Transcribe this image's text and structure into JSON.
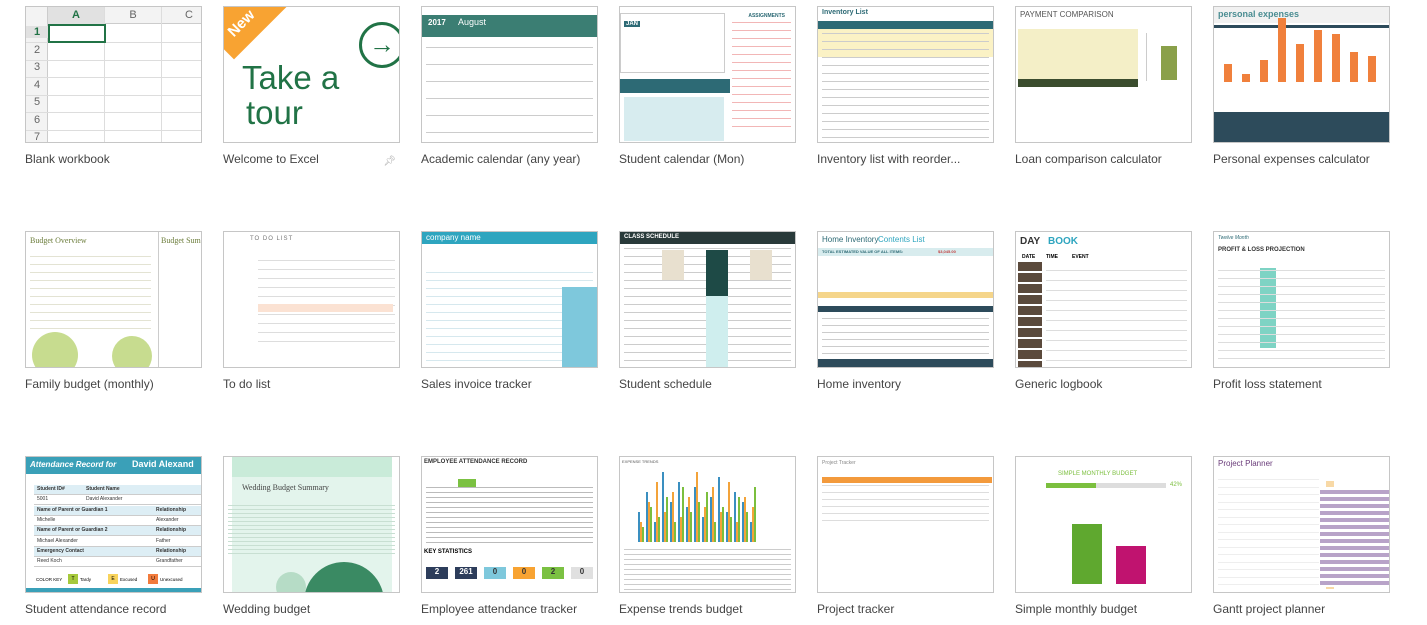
{
  "templates": [
    {
      "label": "Blank workbook",
      "cols": [
        "A",
        "B",
        "C"
      ],
      "rows": [
        "1",
        "2",
        "3",
        "4",
        "5",
        "6",
        "7"
      ]
    },
    {
      "label": "Welcome to Excel",
      "badge": "New",
      "title_line1": "Take a",
      "title_line2": "tour"
    },
    {
      "label": "Academic calendar (any year)",
      "year": "2017",
      "month": "August"
    },
    {
      "label": "Student calendar (Mon)",
      "heading": "ASSIGNMENTS",
      "month": "JAN"
    },
    {
      "label": "Inventory list with reorder...",
      "heading": "Inventory List"
    },
    {
      "label": "Loan comparison calculator",
      "heading": "PAYMENT COMPARISON"
    },
    {
      "label": "Personal expenses calculator",
      "heading": "personal expenses"
    },
    {
      "label": "Family budget (monthly)",
      "heading": "Budget Overview",
      "heading2": "Budget Sum"
    },
    {
      "label": "To do list",
      "heading": "TO DO LIST"
    },
    {
      "label": "Sales invoice tracker",
      "heading": "company name"
    },
    {
      "label": "Student schedule",
      "heading": "CLASS SCHEDULE"
    },
    {
      "label": "Home inventory",
      "heading": "Home Inventory",
      "heading2": "Contents List",
      "total": "TOTAL ESTIMATED VALUE OF ALL ITEMS:",
      "total_value": "$3,045.00"
    },
    {
      "label": "Generic logbook",
      "heading1": "DAY",
      "heading2": "BOOK",
      "cols": [
        "DATE",
        "TIME",
        "EVENT"
      ]
    },
    {
      "label": "Profit loss statement",
      "subtitle": "Twelve Month",
      "heading": "PROFIT & LOSS PROJECTION"
    },
    {
      "label": "Student attendance record",
      "heading": "Attendance Record for",
      "name": "David Alexand",
      "rows": [
        [
          "Student ID#",
          "Student Name"
        ],
        [
          "5001",
          "David Alexander"
        ],
        [
          "Name of Parent or Guardian 1",
          "Relationship"
        ],
        [
          "Michelle",
          "Alexander"
        ],
        [
          "Name of Parent or Guardian 2",
          "Relationship"
        ],
        [
          "Michael Alexander",
          "Father"
        ],
        [
          "Emergency Contact",
          "Relationship"
        ],
        [
          "Reed Koch",
          "Grandfather"
        ]
      ],
      "key": "COLOR KEY",
      "key_items": [
        [
          "T",
          "Tardy"
        ],
        [
          "E",
          "Excused"
        ],
        [
          "U",
          "Unexcused"
        ]
      ]
    },
    {
      "label": "Wedding budget",
      "heading": "Wedding Budget Summary"
    },
    {
      "label": "Employee attendance tracker",
      "heading": "EMPLOYEE ATTENDANCE RECORD",
      "stats": "KEY STATISTICS",
      "values": [
        "2",
        "261",
        "0",
        "0",
        "2",
        "0"
      ]
    },
    {
      "label": "Expense trends budget",
      "heading": "EXPENSE TRENDS"
    },
    {
      "label": "Project tracker",
      "heading": "Project Tracker"
    },
    {
      "label": "Simple monthly budget",
      "heading": "SIMPLE MONTHLY BUDGET",
      "percent": "42%"
    },
    {
      "label": "Gantt project planner",
      "heading": "Project Planner"
    }
  ],
  "colors": {
    "excel_green": "#217346",
    "orange": "#f59d2a",
    "teal": "#3aa0b8"
  }
}
